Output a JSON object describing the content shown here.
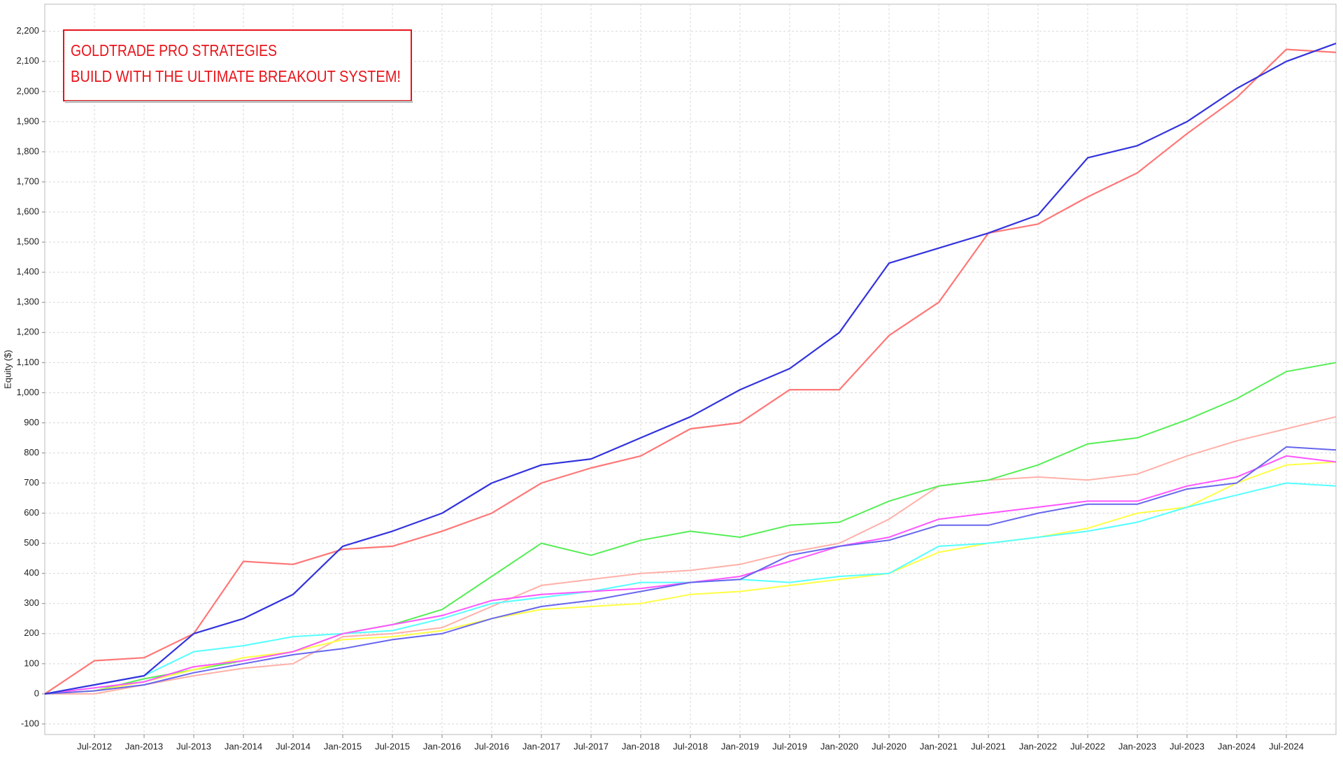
{
  "chart_data": {
    "type": "line",
    "ylabel": "Equity ($)",
    "annotation": [
      "GOLDTRADE PRO STRATEGIES",
      "BUILD WITH THE ULTIMATE BREAKOUT SYSTEM!"
    ],
    "categories": [
      null,
      "Jul-2012",
      "Jan-2013",
      "Jul-2013",
      "Jan-2014",
      "Jul-2014",
      "Jan-2015",
      "Jul-2015",
      "Jan-2016",
      "Jul-2016",
      "Jan-2017",
      "Jul-2017",
      "Jan-2018",
      "Jul-2018",
      "Jan-2019",
      "Jul-2019",
      "Jan-2020",
      "Jul-2020",
      "Jan-2021",
      "Jul-2021",
      "Jan-2022",
      "Jul-2022",
      "Jan-2023",
      "Jul-2023",
      "Jan-2024",
      "Jul-2024",
      null
    ],
    "ylim": [
      -135,
      2290
    ],
    "yticks": [
      -100,
      0,
      100,
      200,
      300,
      400,
      500,
      600,
      700,
      800,
      900,
      {
        "value": 1000,
        "label": "1,000"
      },
      {
        "value": 1100,
        "label": "1,100"
      },
      {
        "value": 1200,
        "label": "1,200"
      },
      {
        "value": 1300,
        "label": "1,300"
      },
      {
        "value": 1400,
        "label": "1,400"
      },
      {
        "value": 1500,
        "label": "1,500"
      },
      {
        "value": 1600,
        "label": "1,600"
      },
      {
        "value": 1700,
        "label": "1,700"
      },
      {
        "value": 1800,
        "label": "1,800"
      },
      {
        "value": 1900,
        "label": "1,900"
      },
      {
        "value": 2000,
        "label": "2,000"
      },
      {
        "value": 2100,
        "label": "2,100"
      },
      {
        "value": 2200,
        "label": "2,200"
      }
    ],
    "grid": true,
    "series": [
      {
        "color": "#ff7777",
        "values": [
          0,
          110,
          120,
          200,
          440,
          430,
          480,
          490,
          540,
          600,
          700,
          750,
          790,
          880,
          900,
          1010,
          1010,
          1190,
          1300,
          1530,
          1560,
          1650,
          1730,
          1860,
          1980,
          2140,
          2130
        ]
      },
      {
        "color": "#ffb0a8",
        "values": [
          0,
          0,
          30,
          60,
          85,
          100,
          190,
          200,
          220,
          290,
          360,
          380,
          400,
          410,
          430,
          470,
          500,
          580,
          690,
          710,
          720,
          710,
          730,
          790,
          840,
          880,
          920
        ]
      },
      {
        "color": "#55ee55",
        "values": [
          0,
          10,
          50,
          80,
          110,
          140,
          200,
          230,
          280,
          390,
          500,
          460,
          510,
          540,
          520,
          560,
          570,
          640,
          690,
          710,
          760,
          830,
          850,
          910,
          980,
          1070,
          1100
        ]
      },
      {
        "color": "#ffff44",
        "values": [
          0,
          10,
          40,
          80,
          120,
          140,
          180,
          190,
          210,
          250,
          280,
          290,
          300,
          330,
          340,
          360,
          380,
          400,
          470,
          500,
          520,
          550,
          600,
          620,
          700,
          760,
          770
        ]
      },
      {
        "color": "#55ffff",
        "values": [
          0,
          30,
          60,
          140,
          160,
          190,
          200,
          210,
          250,
          300,
          320,
          340,
          370,
          370,
          380,
          370,
          390,
          400,
          490,
          500,
          520,
          540,
          570,
          620,
          660,
          700,
          690
        ]
      },
      {
        "color": "#ff55ff",
        "values": [
          0,
          20,
          40,
          90,
          110,
          140,
          200,
          230,
          260,
          310,
          330,
          340,
          350,
          370,
          390,
          440,
          490,
          520,
          580,
          600,
          620,
          640,
          640,
          690,
          720,
          790,
          770
        ]
      },
      {
        "color": "#6666ee",
        "values": [
          0,
          10,
          30,
          70,
          100,
          130,
          150,
          180,
          200,
          250,
          290,
          310,
          340,
          370,
          380,
          460,
          490,
          510,
          560,
          560,
          600,
          630,
          630,
          680,
          700,
          820,
          810
        ]
      },
      {
        "color": "#3333dd",
        "values": [
          0,
          30,
          60,
          200,
          250,
          330,
          490,
          540,
          600,
          700,
          760,
          780,
          850,
          920,
          1010,
          1080,
          1200,
          1430,
          1480,
          1530,
          1590,
          1780,
          1820,
          1900,
          2010,
          2100,
          2160
        ]
      }
    ]
  }
}
